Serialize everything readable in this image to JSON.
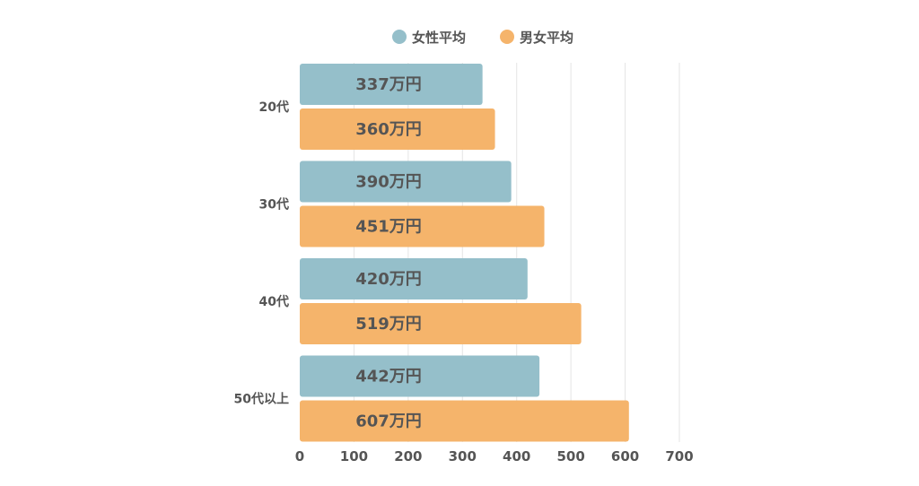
{
  "chart_data": {
    "type": "bar",
    "orientation": "horizontal",
    "categories": [
      "20代",
      "30代",
      "40代",
      "50代以上"
    ],
    "series": [
      {
        "name": "女性平均",
        "color": "#95bfca",
        "values": [
          337,
          390,
          420,
          442
        ],
        "labels": [
          "337万円",
          "390万円",
          "420万円",
          "442万円"
        ]
      },
      {
        "name": "男女平均",
        "color": "#f5b46b",
        "values": [
          360,
          451,
          519,
          607
        ],
        "labels": [
          "360万円",
          "451万円",
          "519万円",
          "607万円"
        ]
      }
    ],
    "x_ticks": [
      "0",
      "100",
      "200",
      "300",
      "400",
      "500",
      "600",
      "700"
    ],
    "xlim": [
      0,
      700
    ],
    "grid": true,
    "legend_position": "top-center"
  }
}
